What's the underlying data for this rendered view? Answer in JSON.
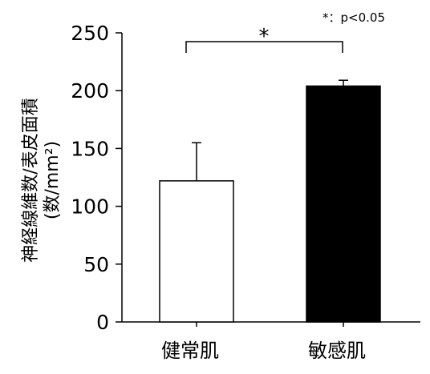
{
  "chart_data": {
    "type": "bar",
    "categories": [
      "健常肌",
      "敏感肌"
    ],
    "values": [
      122,
      204
    ],
    "errors": [
      33,
      5
    ],
    "bar_colors": [
      "#ffffff",
      "#000000"
    ],
    "ylabel_line1": "神経線維数/表皮面積",
    "ylabel_line2": "(数/mm²)",
    "ylim": [
      0,
      250
    ],
    "yticks": [
      0,
      50,
      100,
      150,
      200,
      250
    ],
    "yticks_text": [
      "0",
      "50",
      "100",
      "150",
      "200",
      "250"
    ],
    "significance_mark": "*",
    "significance_note": "*：p<0.05",
    "grid": false,
    "legend": "none"
  }
}
